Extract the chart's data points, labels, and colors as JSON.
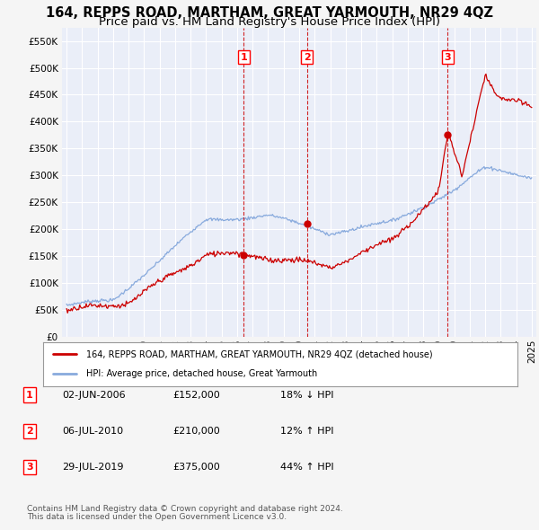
{
  "title": "164, REPPS ROAD, MARTHAM, GREAT YARMOUTH, NR29 4QZ",
  "subtitle": "Price paid vs. HM Land Registry's House Price Index (HPI)",
  "title_fontsize": 10.5,
  "subtitle_fontsize": 9.5,
  "ylim": [
    0,
    575000
  ],
  "yticks": [
    0,
    50000,
    100000,
    150000,
    200000,
    250000,
    300000,
    350000,
    400000,
    450000,
    500000,
    550000
  ],
  "ytick_labels": [
    "£0",
    "£50K",
    "£100K",
    "£150K",
    "£200K",
    "£250K",
    "£300K",
    "£350K",
    "£400K",
    "£450K",
    "£500K",
    "£550K"
  ],
  "xlim_start": 1994.7,
  "xlim_end": 2025.3,
  "background_color": "#f5f5f5",
  "plot_bg_color": "#eaeef8",
  "grid_color": "#ffffff",
  "transaction_dates": [
    2006.42,
    2010.51,
    2019.57
  ],
  "transaction_prices": [
    152000,
    210000,
    375000
  ],
  "transaction_labels": [
    "1",
    "2",
    "3"
  ],
  "transaction_line_color": "#cc0000",
  "legend_line1": "164, REPPS ROAD, MARTHAM, GREAT YARMOUTH, NR29 4QZ (detached house)",
  "legend_line2": "HPI: Average price, detached house, Great Yarmouth",
  "red_line_color": "#cc0000",
  "blue_line_color": "#88aadd",
  "footer_line1": "Contains HM Land Registry data © Crown copyright and database right 2024.",
  "footer_line2": "This data is licensed under the Open Government Licence v3.0.",
  "table_entries": [
    {
      "num": "1",
      "date": "02-JUN-2006",
      "price": "£152,000",
      "change": "18% ↓ HPI"
    },
    {
      "num": "2",
      "date": "06-JUL-2010",
      "price": "£210,000",
      "change": "12% ↑ HPI"
    },
    {
      "num": "3",
      "date": "29-JUL-2019",
      "price": "£375,000",
      "change": "44% ↑ HPI"
    }
  ]
}
